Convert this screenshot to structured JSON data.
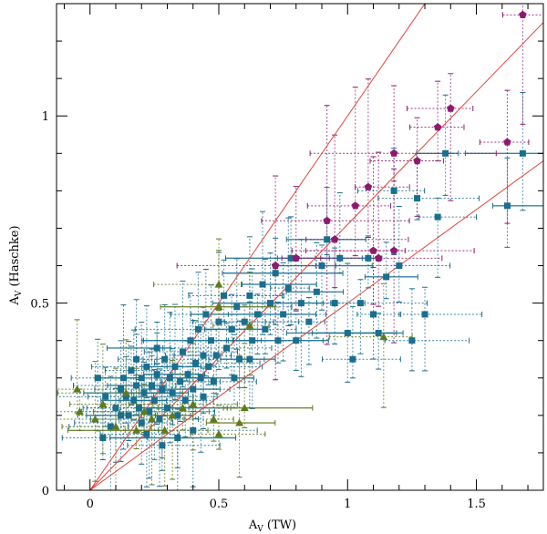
{
  "chart_data": {
    "type": "scatter",
    "xlabel": "A_V (TW)",
    "ylabel": "A_V (Haschke)",
    "xlabel_main": "A",
    "xlabel_sub": "V",
    "xlabel_rest": " (TW)",
    "ylabel_main": "A",
    "ylabel_sub": "V",
    "ylabel_rest": " (Haschke)",
    "xlim": [
      -0.13,
      1.76
    ],
    "ylim": [
      0,
      1.3
    ],
    "x_ticks": [
      {
        "v": 0,
        "label": "0"
      },
      {
        "v": 0.5,
        "label": "0.5"
      },
      {
        "v": 1,
        "label": "1"
      },
      {
        "v": 1.5,
        "label": "1.5"
      }
    ],
    "y_ticks": [
      {
        "v": 0,
        "label": "0"
      },
      {
        "v": 0.5,
        "label": "0.5"
      },
      {
        "v": 1,
        "label": "1"
      }
    ],
    "x_minor_step": 0.1,
    "y_minor_step": 0.1,
    "grid": false,
    "colors": {
      "squares": "#1a6e8e",
      "pentagons": "#8e1a6e",
      "triangles": "#5e7a1e",
      "lines": "#e0443a",
      "axes": "#000000"
    },
    "lines": [
      {
        "slope": 0.5,
        "intercept": 0
      },
      {
        "slope": 0.71,
        "intercept": 0
      },
      {
        "slope": 1.0,
        "intercept": 0
      }
    ],
    "series": [
      {
        "marker": "square",
        "points": [
          [
            0.05,
            0.14
          ],
          [
            0.08,
            0.17
          ],
          [
            0.1,
            0.22
          ],
          [
            0.12,
            0.27
          ],
          [
            0.13,
            0.3
          ],
          [
            0.14,
            0.25
          ],
          [
            0.15,
            0.2
          ],
          [
            0.16,
            0.32
          ],
          [
            0.17,
            0.24
          ],
          [
            0.18,
            0.28
          ],
          [
            0.19,
            0.22
          ],
          [
            0.2,
            0.3
          ],
          [
            0.2,
            0.18
          ],
          [
            0.21,
            0.26
          ],
          [
            0.22,
            0.33
          ],
          [
            0.23,
            0.21
          ],
          [
            0.24,
            0.28
          ],
          [
            0.25,
            0.24
          ],
          [
            0.26,
            0.31
          ],
          [
            0.27,
            0.19
          ],
          [
            0.28,
            0.27
          ],
          [
            0.29,
            0.35
          ],
          [
            0.3,
            0.22
          ],
          [
            0.31,
            0.3
          ],
          [
            0.32,
            0.26
          ],
          [
            0.33,
            0.33
          ],
          [
            0.34,
            0.2
          ],
          [
            0.35,
            0.29
          ],
          [
            0.36,
            0.37
          ],
          [
            0.37,
            0.24
          ],
          [
            0.38,
            0.31
          ],
          [
            0.39,
            0.4
          ],
          [
            0.4,
            0.27
          ],
          [
            0.41,
            0.34
          ],
          [
            0.42,
            0.43
          ],
          [
            0.43,
            0.3
          ],
          [
            0.44,
            0.36
          ],
          [
            0.45,
            0.47
          ],
          [
            0.46,
            0.33
          ],
          [
            0.47,
            0.4
          ],
          [
            0.48,
            0.29
          ],
          [
            0.49,
            0.36
          ],
          [
            0.5,
            0.45
          ],
          [
            0.52,
            0.52
          ],
          [
            0.53,
            0.38
          ],
          [
            0.55,
            0.43
          ],
          [
            0.57,
            0.49
          ],
          [
            0.58,
            0.35
          ],
          [
            0.6,
            0.45
          ],
          [
            0.62,
            0.52
          ],
          [
            0.63,
            0.4
          ],
          [
            0.65,
            0.47
          ],
          [
            0.67,
            0.55
          ],
          [
            0.68,
            0.43
          ],
          [
            0.7,
            0.5
          ],
          [
            0.72,
            0.58
          ],
          [
            0.73,
            0.4
          ],
          [
            0.75,
            0.47
          ],
          [
            0.77,
            0.54
          ],
          [
            0.78,
            0.62
          ],
          [
            0.8,
            0.4
          ],
          [
            0.82,
            0.5
          ],
          [
            0.85,
            0.45
          ],
          [
            0.88,
            0.53
          ],
          [
            0.9,
            0.6
          ],
          [
            0.92,
            0.67
          ],
          [
            0.95,
            0.5
          ],
          [
            0.97,
            0.62
          ],
          [
            1.0,
            0.42
          ],
          [
            1.02,
            0.35
          ],
          [
            1.05,
            0.5
          ],
          [
            1.08,
            0.62
          ],
          [
            1.1,
            0.47
          ],
          [
            1.12,
            0.42
          ],
          [
            1.15,
            0.57
          ],
          [
            1.18,
            0.8
          ],
          [
            1.2,
            0.6
          ],
          [
            1.25,
            0.4
          ],
          [
            1.27,
            0.78
          ],
          [
            1.3,
            0.47
          ],
          [
            1.35,
            0.73
          ],
          [
            1.38,
            0.9
          ],
          [
            1.62,
            0.76
          ],
          [
            1.68,
            0.9
          ],
          [
            0.34,
            0.14
          ],
          [
            0.4,
            0.16
          ],
          [
            0.28,
            0.12
          ],
          [
            0.22,
            0.15
          ],
          [
            0.12,
            0.2
          ],
          [
            0.06,
            0.25
          ],
          [
            0.03,
            0.3
          ],
          [
            0.18,
            0.35
          ],
          [
            0.26,
            0.38
          ],
          [
            0.44,
            0.25
          ],
          [
            0.56,
            0.3
          ],
          [
            0.62,
            0.35
          ]
        ]
      },
      {
        "marker": "pentagon",
        "points": [
          [
            0.72,
            0.6
          ],
          [
            0.8,
            0.62
          ],
          [
            0.92,
            0.72
          ],
          [
            0.95,
            0.67
          ],
          [
            1.03,
            0.76
          ],
          [
            1.08,
            0.81
          ],
          [
            1.1,
            0.64
          ],
          [
            1.12,
            0.62
          ],
          [
            1.18,
            0.64
          ],
          [
            1.18,
            0.9
          ],
          [
            1.27,
            0.88
          ],
          [
            1.35,
            0.97
          ],
          [
            1.4,
            1.02
          ],
          [
            1.62,
            0.93
          ],
          [
            1.68,
            1.27
          ]
        ]
      },
      {
        "marker": "triangle",
        "points": [
          [
            -0.05,
            0.27
          ],
          [
            -0.04,
            0.21
          ],
          [
            0.02,
            0.19
          ],
          [
            0.05,
            0.23
          ],
          [
            0.1,
            0.17
          ],
          [
            0.14,
            0.26
          ],
          [
            0.18,
            0.16
          ],
          [
            0.21,
            0.21
          ],
          [
            0.24,
            0.19
          ],
          [
            0.29,
            0.16
          ],
          [
            0.32,
            0.2
          ],
          [
            0.36,
            0.22
          ],
          [
            0.4,
            0.23
          ],
          [
            0.48,
            0.19
          ],
          [
            0.5,
            0.15
          ],
          [
            0.58,
            0.18
          ],
          [
            0.6,
            0.22
          ],
          [
            0.62,
            0.44
          ],
          [
            0.5,
            0.55
          ],
          [
            0.5,
            0.49
          ],
          [
            1.14,
            0.41
          ]
        ]
      }
    ]
  }
}
